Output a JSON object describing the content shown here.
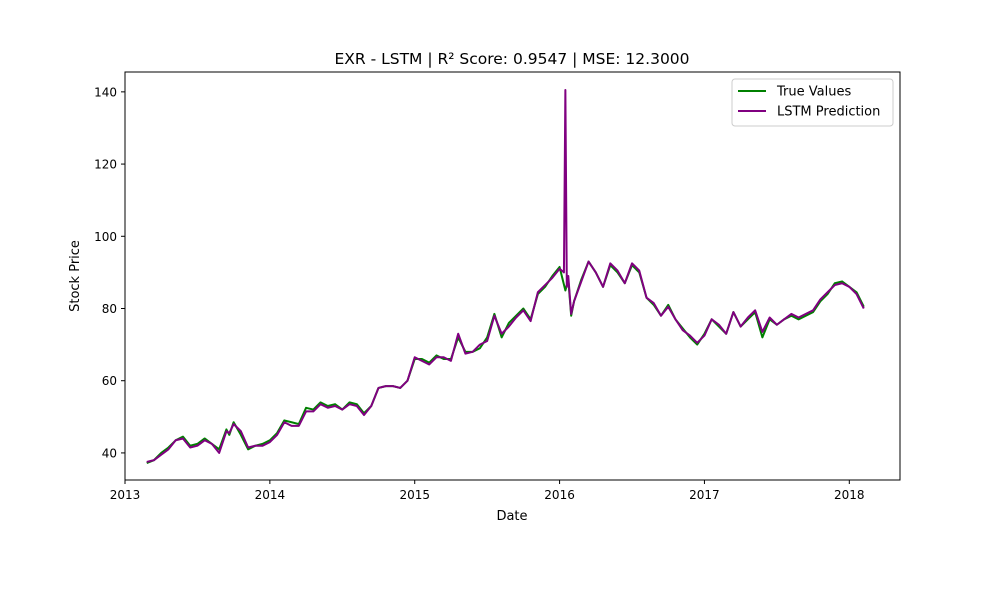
{
  "chart_data": {
    "type": "line",
    "title": "EXR - LSTM | R² Score: 0.9547 | MSE: 12.3000",
    "xlabel": "Date",
    "ylabel": "Stock Price",
    "xlim": [
      2013.0,
      2018.35
    ],
    "ylim": [
      32.5,
      145.5
    ],
    "xticks": [
      2013,
      2014,
      2015,
      2016,
      2017,
      2018
    ],
    "xtick_labels": [
      "2013",
      "2014",
      "2015",
      "2016",
      "2017",
      "2018"
    ],
    "yticks": [
      40,
      60,
      80,
      100,
      120,
      140
    ],
    "ytick_labels": [
      "40",
      "60",
      "80",
      "100",
      "120",
      "140"
    ],
    "grid": false,
    "legend_position": "top-right",
    "series": [
      {
        "name": "True Values",
        "color": "#008000",
        "x": [
          2013.15,
          2013.2,
          2013.25,
          2013.3,
          2013.35,
          2013.4,
          2013.45,
          2013.5,
          2013.55,
          2013.6,
          2013.65,
          2013.7,
          2013.72,
          2013.75,
          2013.8,
          2013.85,
          2013.9,
          2013.95,
          2014.0,
          2014.05,
          2014.1,
          2014.15,
          2014.2,
          2014.25,
          2014.3,
          2014.35,
          2014.4,
          2014.45,
          2014.5,
          2014.55,
          2014.6,
          2014.65,
          2014.7,
          2014.75,
          2014.8,
          2014.85,
          2014.9,
          2014.95,
          2015.0,
          2015.05,
          2015.1,
          2015.15,
          2015.2,
          2015.25,
          2015.3,
          2015.35,
          2015.4,
          2015.45,
          2015.5,
          2015.55,
          2015.6,
          2015.65,
          2015.7,
          2015.75,
          2015.8,
          2015.85,
          2015.9,
          2015.95,
          2016.0,
          2016.04,
          2016.06,
          2016.08,
          2016.1,
          2016.15,
          2016.2,
          2016.25,
          2016.3,
          2016.35,
          2016.4,
          2016.45,
          2016.5,
          2016.55,
          2016.6,
          2016.65,
          2016.7,
          2016.75,
          2016.8,
          2016.85,
          2016.9,
          2016.95,
          2017.0,
          2017.05,
          2017.1,
          2017.15,
          2017.2,
          2017.25,
          2017.3,
          2017.35,
          2017.4,
          2017.45,
          2017.5,
          2017.55,
          2017.6,
          2017.65,
          2017.7,
          2017.75,
          2017.8,
          2017.85,
          2017.9,
          2017.95,
          2018.0,
          2018.05,
          2018.1
        ],
        "values": [
          37.2,
          38.0,
          40.0,
          41.5,
          43.5,
          44.5,
          42.0,
          42.5,
          44.0,
          42.5,
          41.0,
          46.5,
          45.0,
          48.5,
          45.0,
          41.0,
          42.0,
          42.5,
          43.5,
          45.5,
          49.0,
          48.5,
          48.0,
          52.5,
          52.0,
          54.0,
          53.0,
          53.5,
          52.0,
          54.0,
          53.5,
          51.0,
          53.0,
          58.0,
          58.5,
          58.5,
          58.0,
          60.0,
          66.0,
          66.0,
          65.0,
          67.0,
          66.0,
          66.0,
          72.0,
          68.0,
          68.0,
          69.0,
          72.0,
          78.5,
          72.0,
          76.0,
          78.0,
          80.0,
          77.0,
          84.0,
          86.0,
          89.0,
          91.5,
          85.0,
          88.0,
          78.0,
          82.0,
          88.0,
          93.0,
          90.0,
          86.0,
          92.0,
          90.0,
          87.0,
          92.0,
          90.0,
          83.0,
          81.0,
          78.0,
          81.0,
          77.0,
          74.5,
          72.0,
          70.0,
          73.0,
          77.0,
          75.0,
          73.0,
          79.0,
          75.0,
          77.0,
          79.0,
          72.0,
          77.0,
          75.5,
          77.0,
          78.0,
          77.0,
          78.0,
          79.0,
          82.0,
          84.0,
          87.0,
          87.5,
          86.0,
          84.5,
          80.5
        ]
      },
      {
        "name": "LSTM Prediction",
        "color": "#800080",
        "x": [
          2013.15,
          2013.2,
          2013.25,
          2013.3,
          2013.35,
          2013.4,
          2013.45,
          2013.5,
          2013.55,
          2013.6,
          2013.65,
          2013.7,
          2013.72,
          2013.75,
          2013.8,
          2013.85,
          2013.9,
          2013.95,
          2014.0,
          2014.05,
          2014.1,
          2014.15,
          2014.2,
          2014.25,
          2014.3,
          2014.35,
          2014.4,
          2014.45,
          2014.5,
          2014.55,
          2014.6,
          2014.65,
          2014.7,
          2014.75,
          2014.8,
          2014.85,
          2014.9,
          2014.95,
          2015.0,
          2015.05,
          2015.1,
          2015.15,
          2015.2,
          2015.25,
          2015.3,
          2015.35,
          2015.4,
          2015.45,
          2015.5,
          2015.55,
          2015.6,
          2015.65,
          2015.7,
          2015.75,
          2015.8,
          2015.85,
          2015.9,
          2015.95,
          2016.0,
          2016.03,
          2016.04,
          2016.05,
          2016.06,
          2016.08,
          2016.1,
          2016.15,
          2016.2,
          2016.25,
          2016.3,
          2016.35,
          2016.4,
          2016.45,
          2016.5,
          2016.55,
          2016.6,
          2016.65,
          2016.7,
          2016.75,
          2016.8,
          2016.85,
          2016.9,
          2016.95,
          2017.0,
          2017.05,
          2017.1,
          2017.15,
          2017.2,
          2017.25,
          2017.3,
          2017.35,
          2017.4,
          2017.45,
          2017.5,
          2017.55,
          2017.6,
          2017.65,
          2017.7,
          2017.75,
          2017.8,
          2017.85,
          2017.9,
          2017.95,
          2018.0,
          2018.05,
          2018.1
        ],
        "values": [
          37.5,
          38.0,
          39.5,
          41.0,
          43.5,
          44.0,
          41.5,
          42.0,
          43.5,
          42.5,
          40.0,
          46.0,
          45.5,
          48.0,
          46.0,
          41.5,
          42.0,
          42.0,
          43.0,
          45.0,
          48.5,
          47.5,
          47.5,
          51.5,
          51.5,
          53.5,
          52.5,
          53.0,
          52.0,
          53.5,
          53.0,
          50.5,
          53.0,
          58.0,
          58.5,
          58.5,
          58.0,
          60.0,
          66.5,
          65.5,
          64.5,
          66.5,
          66.5,
          65.5,
          73.0,
          67.5,
          68.0,
          70.0,
          71.0,
          78.0,
          73.0,
          75.0,
          77.5,
          79.5,
          76.5,
          84.5,
          86.5,
          88.5,
          91.0,
          90.0,
          140.5,
          86.0,
          89.0,
          78.5,
          82.0,
          87.5,
          93.0,
          90.0,
          86.0,
          92.5,
          90.5,
          87.0,
          92.5,
          90.5,
          83.0,
          81.5,
          78.0,
          80.5,
          77.0,
          74.0,
          72.5,
          70.5,
          72.5,
          77.0,
          75.5,
          73.0,
          79.0,
          75.0,
          77.5,
          79.5,
          73.5,
          77.5,
          75.5,
          77.0,
          78.5,
          77.5,
          78.5,
          79.5,
          82.5,
          84.5,
          86.5,
          87.0,
          86.0,
          84.0,
          80.0
        ]
      }
    ]
  }
}
